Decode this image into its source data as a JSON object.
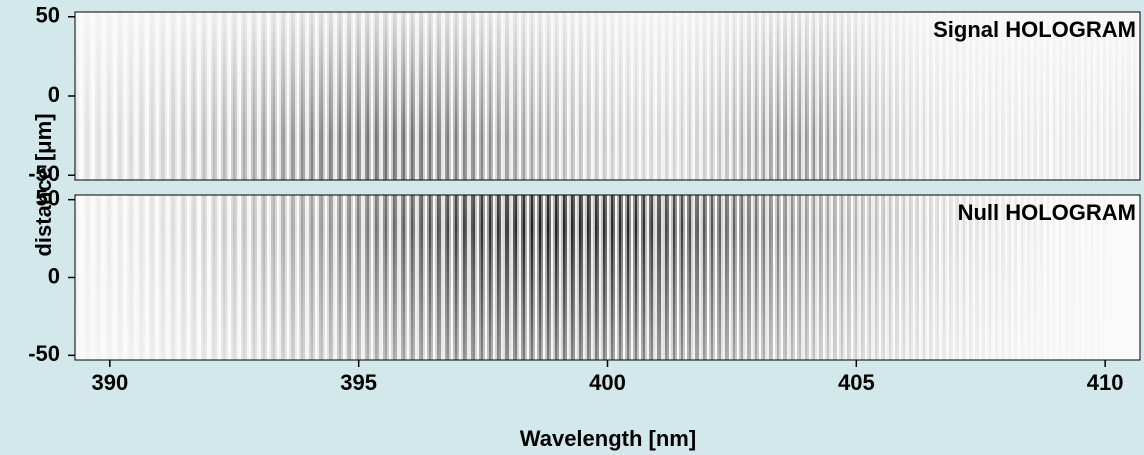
{
  "chart_data": [
    {
      "type": "image",
      "annotation": "Signal HOLOGRAM",
      "xlim": [
        389.3,
        410.7
      ],
      "ylim": [
        -53,
        53
      ],
      "yticks": [
        -50,
        0,
        50
      ],
      "ylabel": "distance [μm]"
    },
    {
      "type": "image",
      "annotation": "Null HOLOGRAM",
      "xlim": [
        389.3,
        410.7
      ],
      "ylim": [
        -53,
        53
      ],
      "yticks": [
        -50,
        0,
        50
      ],
      "xticks": [
        390,
        395,
        400,
        405,
        410
      ],
      "xlabel": "Wavelength [nm]"
    }
  ]
}
